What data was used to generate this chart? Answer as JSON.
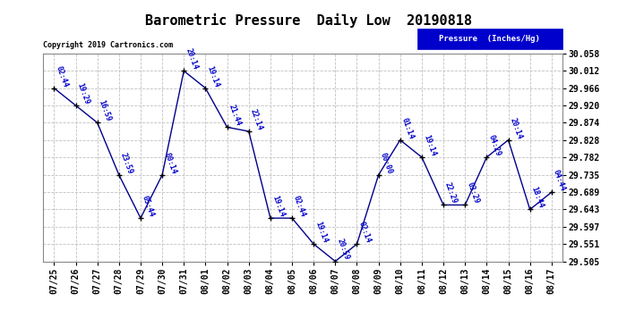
{
  "title": "Barometric Pressure  Daily Low  20190818",
  "ylabel_legend": "Pressure  (Inches/Hg)",
  "copyright": "Copyright 2019 Cartronics.com",
  "dates": [
    "07/25",
    "07/26",
    "07/27",
    "07/28",
    "07/29",
    "07/30",
    "07/31",
    "08/01",
    "08/02",
    "08/03",
    "08/04",
    "08/05",
    "08/06",
    "08/07",
    "08/08",
    "08/09",
    "08/10",
    "08/11",
    "08/12",
    "08/13",
    "08/14",
    "08/15",
    "08/16",
    "08/17"
  ],
  "times": [
    "02:44",
    "19:29",
    "16:59",
    "23:59",
    "05:44",
    "00:14",
    "20:14",
    "19:14",
    "21:44",
    "22:14",
    "19:14",
    "02:44",
    "19:14",
    "20:59",
    "02:14",
    "00:00",
    "01:14",
    "19:14",
    "22:29",
    "03:29",
    "04:29",
    "20:14",
    "18:44",
    "04:44"
  ],
  "values": [
    29.966,
    29.92,
    29.874,
    29.735,
    29.62,
    29.735,
    30.012,
    29.966,
    29.862,
    29.851,
    29.62,
    29.62,
    29.551,
    29.505,
    29.551,
    29.735,
    29.828,
    29.782,
    29.655,
    29.655,
    29.782,
    29.828,
    29.643,
    29.689
  ],
  "ylim_low": 29.505,
  "ylim_high": 30.058,
  "yticks": [
    29.505,
    29.551,
    29.597,
    29.643,
    29.689,
    29.735,
    29.782,
    29.828,
    29.874,
    29.92,
    29.966,
    30.012,
    30.058
  ],
  "line_color": "#00008b",
  "marker_color": "#000000",
  "label_color": "#0000cc",
  "bg_color": "#ffffff",
  "grid_color": "#c0c0c0",
  "legend_bg": "#0000cc",
  "legend_text_color": "#ffffff",
  "title_fontsize": 11,
  "tick_fontsize": 7,
  "label_fontsize": 6
}
